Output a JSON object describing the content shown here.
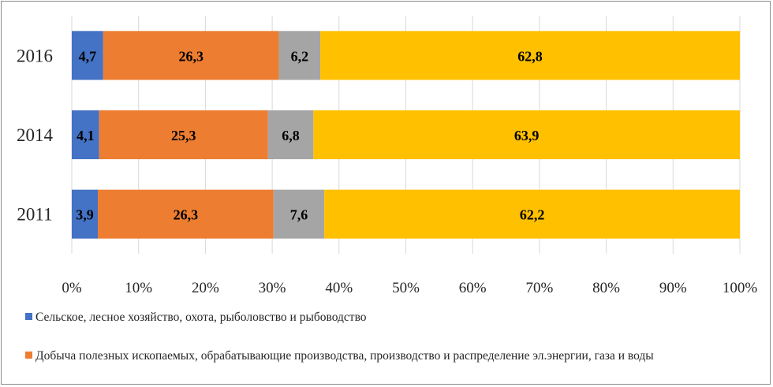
{
  "chart_data": {
    "type": "bar",
    "orientation": "horizontal",
    "stacked": "percent",
    "categories": [
      "2011",
      "2014",
      "2016"
    ],
    "series": [
      {
        "name": "Сельское, лесное хозяйство, охота, рыболовство и рыбоводство",
        "values": [
          3.9,
          4.1,
          4.7
        ],
        "labels": [
          "3,9",
          "4,1",
          "4,7"
        ],
        "color": "#4472c4"
      },
      {
        "name": "Добыча полезных ископаемых, обрабатывающие производства, производство и распределение эл.энергии, газа и воды",
        "values": [
          26.3,
          25.3,
          26.3
        ],
        "labels": [
          "26,3",
          "25,3",
          "26,3"
        ],
        "color": "#ed7d31"
      },
      {
        "name": "",
        "values": [
          7.6,
          6.8,
          6.2
        ],
        "labels": [
          "7,6",
          "6,8",
          "6,2"
        ],
        "color": "#a5a5a5"
      },
      {
        "name": "",
        "values": [
          62.2,
          63.9,
          62.8
        ],
        "labels": [
          "62,2",
          "63,9",
          "62,8"
        ],
        "color": "#ffc000"
      }
    ],
    "xlim": [
      0,
      100
    ],
    "x_ticks": [
      "0%",
      "10%",
      "20%",
      "30%",
      "40%",
      "50%",
      "60%",
      "70%",
      "80%",
      "90%",
      "100%"
    ],
    "grid": "vertical",
    "legend": "bottom",
    "gridline_color": "#d9d9d9"
  },
  "legend_items": [
    {
      "label": "Сельское, лесное хозяйство, охота, рыболовство и рыбоводство",
      "color": "#4472c4"
    },
    {
      "label": "Добыча полезных ископаемых, обрабатывающие производства, производство и распределение эл.энергии, газа и воды",
      "color": "#ed7d31"
    }
  ]
}
